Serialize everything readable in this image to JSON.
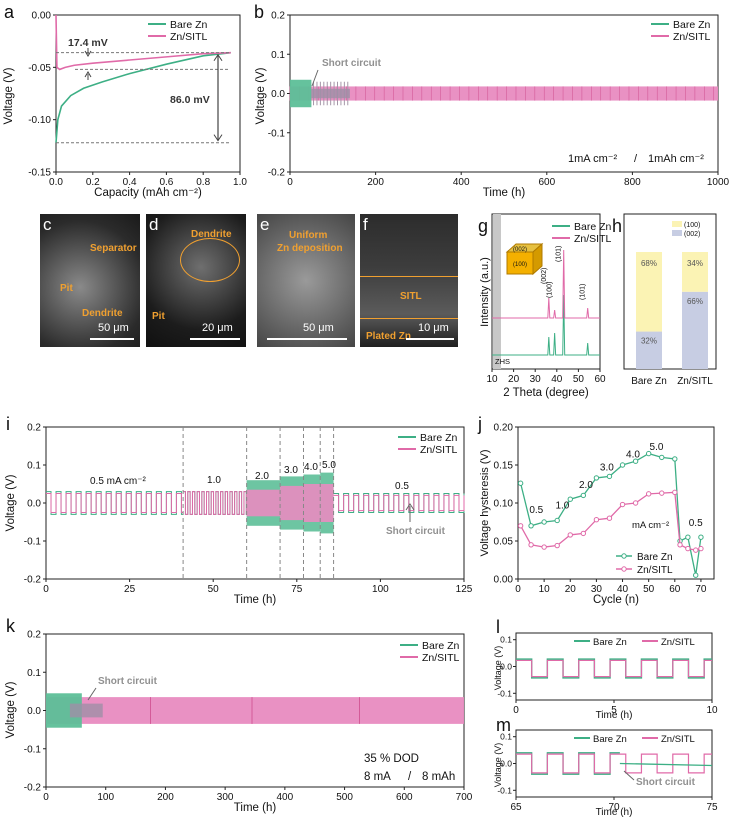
{
  "colors": {
    "bare": "#3daf85",
    "sitl": "#e06aa8",
    "sitl_fill": "#e88bc0",
    "bare_fill": "#5dbf98",
    "gray_arrow": "#909090"
  },
  "panel_letters": {
    "a": "a",
    "b": "b",
    "c": "c",
    "d": "d",
    "e": "e",
    "f": "f",
    "g": "g",
    "h": "h",
    "i": "i",
    "j": "j",
    "k": "k",
    "l": "l",
    "m": "m"
  },
  "legend": {
    "bare": "Bare Zn",
    "sitl": "Zn/SITL"
  },
  "panel_a": {
    "xlabel": "Capacity (mAh cm⁻²)",
    "ylabel": "Voltage (V)",
    "xticks": [
      "0.0",
      "0.2",
      "0.4",
      "0.6",
      "0.8",
      "1.0"
    ],
    "yticks": [
      "0.00",
      "-0.05",
      "-0.10",
      "-0.15"
    ],
    "ann_17": "17.4 mV",
    "ann_86": "86.0 mV"
  },
  "panel_b": {
    "xlabel": "Time (h)",
    "ylabel": "Voltage (V)",
    "xticks": [
      "0",
      "200",
      "400",
      "600",
      "800",
      "1000"
    ],
    "yticks": [
      "0.2",
      "0.1",
      "0.0",
      "-0.1",
      "-0.2"
    ],
    "short": "Short circuit",
    "cond_a": "1mA cm⁻²",
    "cond_sep": "/",
    "cond_b": "1mAh cm⁻²"
  },
  "sem": {
    "c": {
      "labels": [
        "Separator",
        "Pit",
        "Dendrite"
      ],
      "scale": "50 μm"
    },
    "d": {
      "labels": [
        "Dendrite",
        "Pit"
      ],
      "scale": "20 μm"
    },
    "e": {
      "labels": [
        "Uniform",
        "Zn deposition"
      ],
      "scale": "50 μm"
    },
    "f": {
      "labels": [
        "SITL",
        "Plated Zn"
      ],
      "scale": "10 μm"
    }
  },
  "panel_g": {
    "xlabel": "2 Theta (degree)",
    "ylabel": "Intensity (a.u.)",
    "xticks": [
      "10",
      "20",
      "30",
      "40",
      "50",
      "60"
    ],
    "peaks": [
      "(002)",
      "(100)",
      "(101)",
      "(101)"
    ],
    "zhs": "ZHS",
    "crystal": [
      "(002)",
      "(100)"
    ]
  },
  "panel_h": {
    "categories": [
      "Bare Zn",
      "Zn/SITL"
    ],
    "legend": [
      "(100)",
      "(002)"
    ],
    "colors": {
      "c100": "#fbf3b4",
      "c002": "#c7cde3"
    },
    "values": {
      "bare": {
        "c100": 68,
        "c002": 32
      },
      "sitl": {
        "c100": 34,
        "c002": 66
      }
    },
    "labels": {
      "bare100": "68%",
      "bare002": "32%",
      "sitl100": "34%",
      "sitl002": "66%"
    }
  },
  "panel_i": {
    "xlabel": "Time (h)",
    "ylabel": "Voltage (V)",
    "xticks": [
      "0",
      "25",
      "50",
      "75",
      "100",
      "125"
    ],
    "yticks": [
      "0.2",
      "0.1",
      "0.0",
      "-0.1",
      "-0.2"
    ],
    "rates": [
      "0.5 mA cm⁻²",
      "1.0",
      "2.0",
      "3.0",
      "4.0",
      "5.0",
      "0.5"
    ],
    "short": "Short circuit"
  },
  "panel_k": {
    "xlabel": "Time (h)",
    "ylabel": "Voltage (V)",
    "xticks": [
      "0",
      "100",
      "200",
      "300",
      "400",
      "500",
      "600",
      "700"
    ],
    "yticks": [
      "0.2",
      "0.1",
      "0.0",
      "-0.1",
      "-0.2"
    ],
    "short": "Short circuit",
    "dod": "35 % DOD",
    "cond_a": "8 mA",
    "cond_sep": "/",
    "cond_b": "8 mAh"
  },
  "panel_l": {
    "xlabel": "Time (h)",
    "ylabel": "Voltage (V)",
    "xticks": [
      "0",
      "5",
      "10"
    ],
    "yticks": [
      "0.1",
      "0.0",
      "-0.1"
    ]
  },
  "panel_m": {
    "xlabel": "Time (h)",
    "ylabel": "Voltage (V)",
    "xticks": [
      "65",
      "70",
      "75"
    ],
    "yticks": [
      "0.1",
      "0.0",
      "-0.1"
    ],
    "short": "Short circuit"
  },
  "chart_data": [
    {
      "panel": "a",
      "type": "line",
      "xlabel": "Capacity (mAh cm⁻²)",
      "ylabel": "Voltage (V)",
      "xlim": [
        0,
        1.0
      ],
      "ylim": [
        -0.15,
        0.0
      ],
      "series": [
        {
          "name": "Bare Zn",
          "x": [
            0,
            0.01,
            0.03,
            0.08,
            0.15,
            0.25,
            0.4,
            0.6,
            0.8,
            0.95
          ],
          "y": [
            -0.122,
            -0.1,
            -0.087,
            -0.077,
            -0.07,
            -0.064,
            -0.056,
            -0.047,
            -0.039,
            -0.036
          ]
        },
        {
          "name": "Zn/SITL",
          "x": [
            0,
            0.005,
            0.02,
            0.05,
            0.1,
            0.2,
            0.4,
            0.6,
            0.8,
            0.95
          ],
          "y": [
            0.0,
            -0.05,
            -0.052,
            -0.05,
            -0.048,
            -0.046,
            -0.043,
            -0.04,
            -0.037,
            -0.036
          ]
        }
      ]
    },
    {
      "panel": "b",
      "type": "line",
      "xlabel": "Time (h)",
      "ylabel": "Voltage (V)",
      "xlim": [
        0,
        1000
      ],
      "ylim": [
        -0.2,
        0.2
      ],
      "series": [
        {
          "name": "Bare Zn",
          "amplitude_V": 0.035,
          "end_h": 50
        },
        {
          "name": "Zn/SITL",
          "amplitude_V": 0.025,
          "end_h": 1000
        }
      ]
    },
    {
      "panel": "h",
      "type": "bar",
      "categories": [
        "Bare Zn",
        "Zn/SITL"
      ],
      "series": [
        {
          "name": "(100)",
          "values": [
            68,
            34
          ]
        },
        {
          "name": "(002)",
          "values": [
            32,
            66
          ]
        }
      ]
    },
    {
      "panel": "j",
      "type": "line",
      "xlabel": "Cycle (n)",
      "ylabel": "Voltage hysteresis (V)",
      "xlim": [
        0,
        75
      ],
      "ylim": [
        0,
        0.2
      ],
      "x": [
        1,
        5,
        10,
        15,
        20,
        25,
        30,
        35,
        40,
        45,
        50,
        55,
        60,
        62,
        65,
        68,
        70
      ],
      "series": [
        {
          "name": "Bare Zn",
          "values": [
            0.126,
            0.07,
            0.075,
            0.077,
            0.105,
            0.11,
            0.133,
            0.135,
            0.15,
            0.155,
            0.165,
            0.16,
            0.158,
            0.05,
            0.055,
            0.005,
            0.055
          ]
        },
        {
          "name": "Zn/SITL",
          "values": [
            0.07,
            0.045,
            0.042,
            0.044,
            0.058,
            0.06,
            0.078,
            0.08,
            0.098,
            0.1,
            0.112,
            0.113,
            0.114,
            0.045,
            0.04,
            0.038,
            0.04
          ]
        }
      ],
      "rate_labels": [
        "0.5",
        "1.0",
        "2.0",
        "3.0",
        "4.0",
        "5.0",
        "0.5"
      ],
      "unit": "mA cm⁻²",
      "xticks": [
        "0",
        "10",
        "20",
        "30",
        "40",
        "50",
        "60",
        "70"
      ],
      "yticks": [
        "0.20",
        "0.15",
        "0.10",
        "0.05",
        "0.00"
      ]
    },
    {
      "panel": "k",
      "type": "line",
      "xlabel": "Time (h)",
      "ylabel": "Voltage (V)",
      "xlim": [
        0,
        700
      ],
      "ylim": [
        -0.2,
        0.2
      ],
      "series": [
        {
          "name": "Bare Zn",
          "amplitude_V": 0.04,
          "end_h": 60
        },
        {
          "name": "Zn/SITL",
          "amplitude_V": 0.035,
          "end_h": 700
        }
      ]
    }
  ]
}
